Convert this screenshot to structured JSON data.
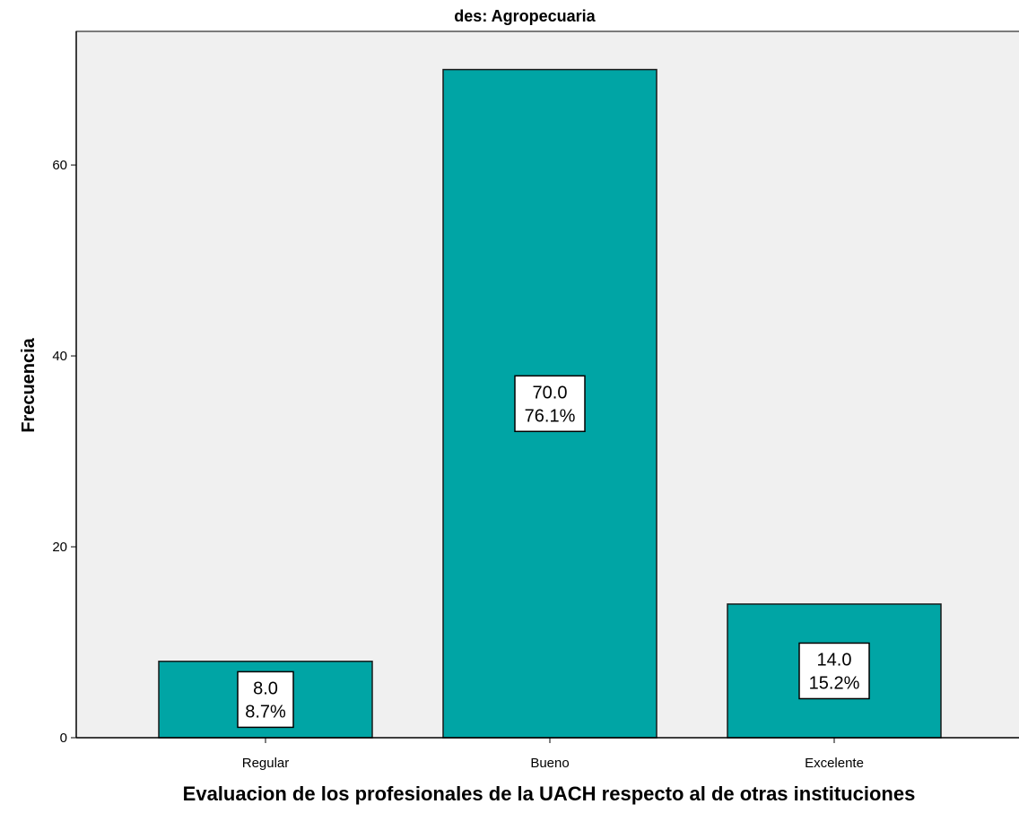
{
  "chart_data": {
    "type": "bar",
    "title": "des: Agropecuaria",
    "xlabel": "Evaluacion de los profesionales de la UACH respecto al de otras instituciones",
    "ylabel": "Frecuencia",
    "categories": [
      "Regular",
      "Bueno",
      "Excelente"
    ],
    "values": [
      8,
      70,
      14
    ],
    "data_labels": [
      {
        "count": "8.0",
        "percent": "8.7%"
      },
      {
        "count": "70.0",
        "percent": "76.1%"
      },
      {
        "count": "14.0",
        "percent": "15.2%"
      }
    ],
    "ylim": [
      0,
      74
    ],
    "yticks": [
      0,
      20,
      40,
      60
    ],
    "grid": false,
    "colors": {
      "bar_fill": "#00A5A5",
      "bar_stroke": "#1a1a1a",
      "plot_background": "#F0F0F0",
      "label_box": "#FFFFFF"
    }
  }
}
